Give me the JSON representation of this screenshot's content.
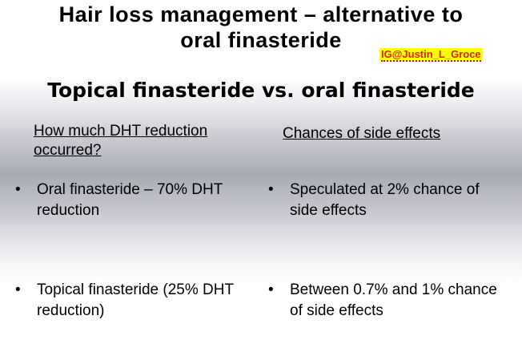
{
  "slide": {
    "title_line1": "Hair loss management – alternative to",
    "title_line2": "oral finasteride",
    "ig_tag": "IG@Justin_L_Groce",
    "subtitle": "Topical finasteride vs. oral finasteride",
    "left_header": "How much DHT reduction occurred?",
    "right_header": "Chances of side effects",
    "bullet_glyph": "•",
    "bullets": [
      "Oral finasteride – 70% DHT reduction",
      "Speculated at 2% chance of side effects",
      "Topical finasteride (25% DHT reduction)",
      "Between 0.7% and 1% chance of side effects"
    ]
  },
  "colors": {
    "ig_background": "#ffff00",
    "ig_text": "#dc2020"
  }
}
